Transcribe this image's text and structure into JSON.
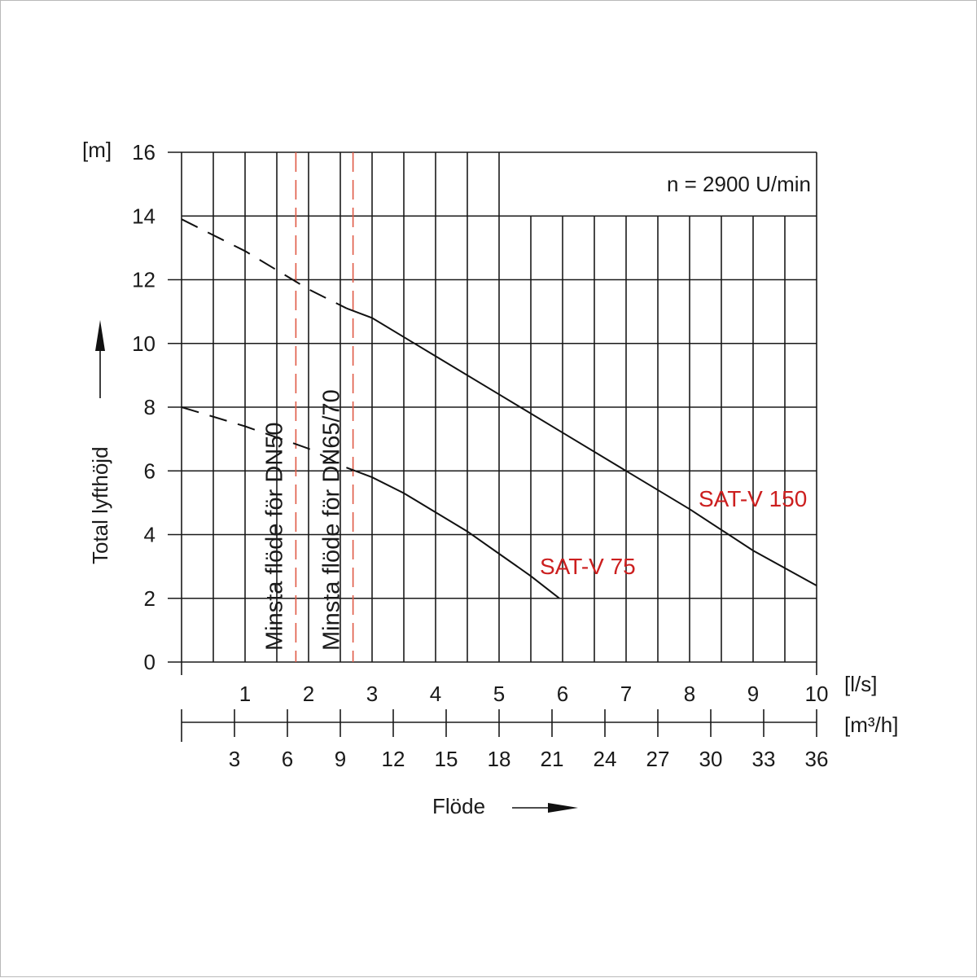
{
  "chart_data": {
    "type": "line",
    "y_unit": "[m]",
    "ylabel": "Total lyfthöjd",
    "xlabel": "Flöde",
    "x_unit_primary": "[l/s]",
    "x_unit_secondary": "[m³/h]",
    "annotation": "n = 2900 U/min",
    "ylim": [
      0,
      16
    ],
    "xlim": [
      0,
      10
    ],
    "y_ticks": [
      "0",
      "2",
      "4",
      "6",
      "8",
      "10",
      "12",
      "14",
      "16"
    ],
    "x_ticks_primary": [
      "1",
      "2",
      "3",
      "4",
      "5",
      "6",
      "7",
      "8",
      "9",
      "10"
    ],
    "x_ticks_secondary": [
      "3",
      "6",
      "9",
      "12",
      "15",
      "18",
      "21",
      "24",
      "27",
      "30",
      "33",
      "36"
    ],
    "grid": true,
    "min_flow_lines": [
      {
        "label": "Minsta flöde för DN50",
        "x": 1.8
      },
      {
        "label": "Minsta flöde för DN65/70",
        "x": 2.7
      }
    ],
    "series": [
      {
        "name": "SAT-V 150",
        "dashed": [
          [
            0,
            13.9
          ],
          [
            1,
            12.9
          ],
          [
            2,
            11.7
          ],
          [
            2.6,
            11.1
          ]
        ],
        "solid": [
          [
            2.6,
            11.1
          ],
          [
            3,
            10.8
          ],
          [
            4,
            9.6
          ],
          [
            5,
            8.4
          ],
          [
            6,
            7.2
          ],
          [
            7,
            6.0
          ],
          [
            8,
            4.8
          ],
          [
            9,
            3.5
          ],
          [
            10,
            2.4
          ]
        ]
      },
      {
        "name": "SAT-V 75",
        "dashed": [
          [
            0,
            8.0
          ],
          [
            1,
            7.4
          ],
          [
            2,
            6.7
          ],
          [
            2.6,
            6.1
          ]
        ],
        "solid": [
          [
            2.6,
            6.1
          ],
          [
            3,
            5.8
          ],
          [
            3.5,
            5.3
          ],
          [
            4,
            4.7
          ],
          [
            4.5,
            4.1
          ],
          [
            5,
            3.4
          ],
          [
            5.5,
            2.7
          ],
          [
            5.95,
            2.0
          ]
        ]
      }
    ]
  }
}
